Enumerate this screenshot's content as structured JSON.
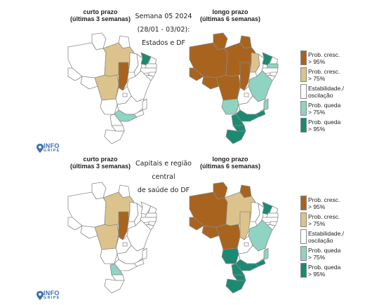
{
  "colors": {
    "grow95": "#a8641e",
    "grow75": "#dcc38c",
    "stable": "#ffffff",
    "drop75": "#8fd3c3",
    "drop95": "#1b8a72"
  },
  "top": {
    "title_short": "curto prazo\n(últimas 3 semanas)",
    "title_long": "longo prazo\n(últimas 6 semanas)",
    "center_lines": [
      "Semana 05 2024",
      "(28/01 - 03/02):",
      "Estados e DF"
    ]
  },
  "bottom": {
    "title_short": "curto prazo\n(últimas 3 semanas)",
    "title_long": "longo prazo\n(últimas 6 semanas)",
    "center_lines": [
      "Capitais e região central",
      "de saúde do DF"
    ]
  },
  "legend": [
    {
      "color": "grow95",
      "label": "Prob. cresc.\n> 95%"
    },
    {
      "color": "grow75",
      "label": "Prob. cresc.\n> 75%"
    },
    {
      "color": "stable",
      "label": "Estabilidade./\noscilação"
    },
    {
      "color": "drop75",
      "label": "Prob. queda\n> 75%"
    },
    {
      "color": "drop95",
      "label": "Prob. queda\n> 95%"
    }
  ],
  "logo": {
    "main": "INFO",
    "sub": "GRIPE",
    "color": "#3a6fb0"
  },
  "maps": {
    "top_short": {
      "AM": "stable",
      "RR": "stable",
      "AP": "stable",
      "PA": "grow75",
      "AC": "stable",
      "RO": "stable",
      "MT": "grow75",
      "TO": "grow95",
      "MA": "stable",
      "PI": "stable",
      "CE": "drop95",
      "RN": "stable",
      "PB": "stable",
      "PE": "stable",
      "AL": "stable",
      "SE": "stable",
      "BA": "stable",
      "GO": "stable",
      "DF": "stable",
      "MS": "stable",
      "MG": "stable",
      "ES": "stable",
      "RJ": "stable",
      "SP": "drop75",
      "PR": "stable",
      "SC": "stable",
      "RS": "stable"
    },
    "top_long": {
      "AM": "grow95",
      "RR": "grow95",
      "AP": "grow95",
      "PA": "grow95",
      "AC": "grow95",
      "RO": "grow95",
      "MT": "grow95",
      "TO": "grow95",
      "MA": "grow75",
      "PI": "stable",
      "CE": "drop95",
      "RN": "stable",
      "PB": "drop75",
      "PE": "stable",
      "AL": "stable",
      "SE": "stable",
      "BA": "drop75",
      "GO": "stable",
      "DF": "stable",
      "MS": "drop75",
      "MG": "stable",
      "ES": "drop75",
      "RJ": "drop95",
      "SP": "drop95",
      "PR": "drop95",
      "SC": "drop95",
      "RS": "drop95"
    },
    "bottom_short": {
      "AM": "stable",
      "RR": "stable",
      "AP": "stable",
      "PA": "grow75",
      "AC": "stable",
      "RO": "stable",
      "MT": "grow75",
      "TO": "grow95",
      "MA": "stable",
      "PI": "stable",
      "CE": "stable",
      "RN": "stable",
      "PB": "stable",
      "PE": "stable",
      "AL": "stable",
      "SE": "stable",
      "BA": "stable",
      "GO": "stable",
      "DF": "stable",
      "MS": "stable",
      "MG": "stable",
      "ES": "stable",
      "RJ": "stable",
      "SP": "stable",
      "PR": "drop75",
      "SC": "stable",
      "RS": "stable"
    },
    "bottom_long": {
      "AM": "grow95",
      "RR": "grow95",
      "AP": "grow95",
      "PA": "grow75",
      "AC": "grow95",
      "RO": "grow95",
      "MT": "grow95",
      "TO": "grow75",
      "MA": "stable",
      "PI": "stable",
      "CE": "drop95",
      "RN": "stable",
      "PB": "stable",
      "PE": "stable",
      "AL": "stable",
      "SE": "stable",
      "BA": "drop75",
      "GO": "stable",
      "DF": "stable",
      "MS": "drop95",
      "MG": "stable",
      "ES": "drop75",
      "RJ": "drop95",
      "SP": "drop95",
      "PR": "drop95",
      "SC": "drop95",
      "RS": "drop95"
    }
  }
}
